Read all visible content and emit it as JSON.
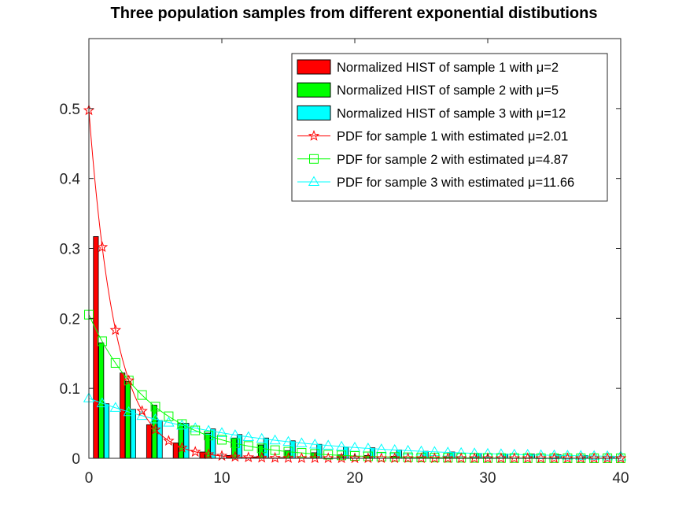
{
  "chart_data": {
    "type": "bar",
    "title": "Three population samples from different exponential distibutions",
    "xlabel": "",
    "ylabel": "",
    "xlim": [
      0,
      40
    ],
    "ylim": [
      0,
      0.6
    ],
    "x_ticks": [
      "0",
      "10",
      "20",
      "30",
      "40"
    ],
    "y_ticks": [
      "0",
      "0.1",
      "0.2",
      "0.3",
      "0.4",
      "0.5"
    ],
    "grid": false,
    "legend_position": "top-right",
    "bar_series": [
      {
        "name": "Normalized HIST of sample 1 with μ=2",
        "color": "#ff0000",
        "x": [
          1,
          3,
          5,
          7,
          9,
          11,
          13,
          15,
          17,
          19
        ],
        "values": [
          0.317,
          0.122,
          0.048,
          0.022,
          0.009,
          0.004,
          0.002,
          0.001,
          0.0005,
          0.0002
        ]
      },
      {
        "name": "Normalized HIST of sample 2 with μ=5",
        "color": "#00ff00",
        "x": [
          1,
          3,
          5,
          7,
          9,
          11,
          13,
          15,
          17,
          19,
          21,
          23,
          25,
          27,
          29,
          31,
          33,
          35,
          37,
          39
        ],
        "values": [
          0.165,
          0.11,
          0.076,
          0.05,
          0.036,
          0.029,
          0.019,
          0.011,
          0.008,
          0.005,
          0.004,
          0.003,
          0.002,
          0.0015,
          0.001,
          0.0008,
          0.0005,
          0.0004,
          0.0003,
          0.0002
        ]
      },
      {
        "name": "Normalized HIST of sample 3 with μ=12",
        "color": "#00ffff",
        "x": [
          1,
          3,
          5,
          7,
          9,
          11,
          13,
          15,
          17,
          19,
          21,
          23,
          25,
          27,
          29,
          31,
          33,
          35,
          37,
          39
        ],
        "values": [
          0.078,
          0.07,
          0.054,
          0.05,
          0.042,
          0.034,
          0.029,
          0.025,
          0.02,
          0.016,
          0.015,
          0.012,
          0.01,
          0.009,
          0.007,
          0.006,
          0.006,
          0.005,
          0.004,
          0.003
        ]
      }
    ],
    "line_series": [
      {
        "name": "PDF for sample 1 with estimated μ=2.01",
        "color": "#ff0000",
        "marker": "star",
        "mu": 2.01,
        "x": [
          0,
          1,
          2,
          3,
          4,
          5,
          6,
          7,
          8,
          9,
          10,
          11,
          12,
          13,
          14,
          15,
          16,
          17,
          18,
          19,
          20,
          21,
          22,
          23,
          24,
          25,
          26,
          27,
          28,
          29,
          30,
          31,
          32,
          33,
          34,
          35,
          36,
          37,
          38,
          39,
          40
        ],
        "values": [
          0.4975,
          0.3019,
          0.1832,
          0.1112,
          0.0675,
          0.041,
          0.0249,
          0.0151,
          0.0092,
          0.0056,
          0.0034,
          0.0021,
          0.0013,
          0.0008,
          0.0005,
          0.0003,
          0.0002,
          0.0001,
          0.0001,
          0.0,
          0.0,
          0.0,
          0.0,
          0.0,
          0.0,
          0.0,
          0.0,
          0.0,
          0.0,
          0.0,
          0.0,
          0.0,
          0.0,
          0.0,
          0.0,
          0.0,
          0.0,
          0.0,
          0.0,
          0.0,
          0.0
        ]
      },
      {
        "name": "PDF for sample 2 with estimated μ=4.87",
        "color": "#00ff00",
        "marker": "square",
        "mu": 4.87,
        "x": [
          0,
          1,
          2,
          3,
          4,
          5,
          6,
          7,
          8,
          9,
          10,
          11,
          12,
          13,
          14,
          15,
          16,
          17,
          18,
          19,
          20,
          21,
          22,
          23,
          24,
          25,
          26,
          27,
          28,
          29,
          30,
          31,
          32,
          33,
          34,
          35,
          36,
          37,
          38,
          39,
          40
        ],
        "values": [
          0.2053,
          0.1673,
          0.1363,
          0.1111,
          0.0905,
          0.0738,
          0.0601,
          0.049,
          0.0399,
          0.0325,
          0.0265,
          0.0216,
          0.0176,
          0.0143,
          0.0117,
          0.0095,
          0.0078,
          0.0063,
          0.0051,
          0.0042,
          0.0034,
          0.0028,
          0.0023,
          0.0019,
          0.0015,
          0.0012,
          0.001,
          0.0008,
          0.0007,
          0.0005,
          0.0004,
          0.0004,
          0.0003,
          0.0002,
          0.0002,
          0.0002,
          0.0001,
          0.0001,
          0.0001,
          0.0001,
          0.0001
        ]
      },
      {
        "name": "PDF for sample 3 with estimated μ=11.66",
        "color": "#00ffff",
        "marker": "triangle",
        "mu": 11.66,
        "x": [
          0,
          1,
          2,
          3,
          4,
          5,
          6,
          7,
          8,
          9,
          10,
          11,
          12,
          13,
          14,
          15,
          16,
          17,
          18,
          19,
          20,
          21,
          22,
          23,
          24,
          25,
          26,
          27,
          28,
          29,
          30,
          31,
          32,
          33,
          34,
          35,
          36,
          37,
          38,
          39,
          40
        ],
        "values": [
          0.0858,
          0.0787,
          0.0722,
          0.0662,
          0.0607,
          0.0557,
          0.0511,
          0.0468,
          0.043,
          0.0394,
          0.0361,
          0.0331,
          0.0304,
          0.0279,
          0.0256,
          0.0235,
          0.0215,
          0.0197,
          0.0181,
          0.0166,
          0.0152,
          0.014,
          0.0128,
          0.0118,
          0.0108,
          0.0099,
          0.0091,
          0.0083,
          0.0076,
          0.007,
          0.0064,
          0.0059,
          0.0054,
          0.005,
          0.0045,
          0.0042,
          0.0038,
          0.0035,
          0.0032,
          0.0029,
          0.0027
        ]
      }
    ]
  }
}
